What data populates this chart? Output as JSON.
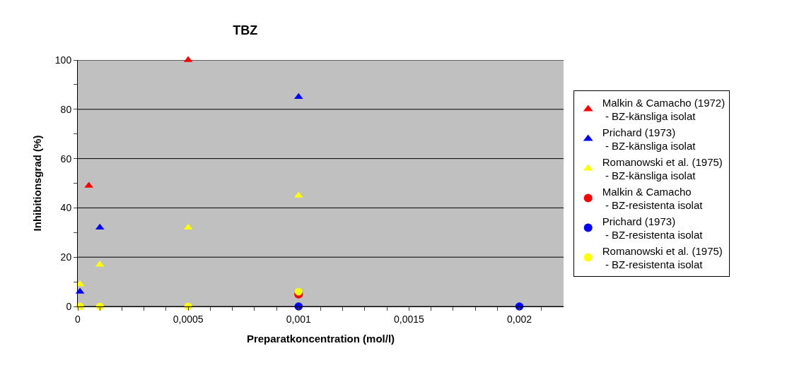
{
  "chart_data": {
    "type": "scatter",
    "title": "TBZ",
    "xlabel": "Preparatkoncentration (mol/l)",
    "ylabel": "Inhibitionsgrad (%)",
    "xlim": [
      0,
      0.0022
    ],
    "ylim": [
      0,
      100
    ],
    "xticks": [
      0,
      {
        "value": 0.0001,
        "label": null
      },
      {
        "value": 0.0002,
        "label": null
      },
      {
        "value": 0.0003,
        "label": null
      },
      {
        "value": 0.0004,
        "label": null
      },
      {
        "value": 0.0005,
        "label": "0,0005"
      },
      {
        "value": 0.0006,
        "label": null
      },
      {
        "value": 0.0007,
        "label": null
      },
      {
        "value": 0.0008,
        "label": null
      },
      {
        "value": 0.0009,
        "label": null
      },
      {
        "value": 0.001,
        "label": "0,001"
      },
      {
        "value": 0.0011,
        "label": null
      },
      {
        "value": 0.0012,
        "label": null
      },
      {
        "value": 0.0013,
        "label": null
      },
      {
        "value": 0.0014,
        "label": null
      },
      {
        "value": 0.0015,
        "label": "0,0015"
      },
      {
        "value": 0.0016,
        "label": null
      },
      {
        "value": 0.0017,
        "label": null
      },
      {
        "value": 0.0018,
        "label": null
      },
      {
        "value": 0.0019,
        "label": null
      },
      {
        "value": 0.002,
        "label": "0,002"
      },
      {
        "value": 0.0021,
        "label": null
      }
    ],
    "yticks": [
      0,
      {
        "value": 10,
        "label": null
      },
      20,
      {
        "value": 30,
        "label": null
      },
      40,
      {
        "value": 50,
        "label": null
      },
      60,
      {
        "value": 70,
        "label": null
      },
      80,
      {
        "value": 90,
        "label": null
      },
      100
    ],
    "grid": "y",
    "legend": "right",
    "series": [
      {
        "name": "Malkin & Camacho (1972)\n - BZ-känsliga isolat",
        "color": "#ff0000",
        "marker": "triangle",
        "x": [
          5e-05,
          0.0005
        ],
        "values": [
          49,
          100
        ]
      },
      {
        "name": "Prichard (1973)\n - BZ-känsliga isolat",
        "color": "#0000ff",
        "marker": "triangle",
        "x": [
          1e-05,
          0.0001,
          0.001
        ],
        "values": [
          6,
          32,
          85
        ]
      },
      {
        "name": "Romanowski et al. (1975)\n - BZ-känsliga isolat",
        "color": "#ffff00",
        "marker": "triangle",
        "x": [
          1e-05,
          0.0001,
          0.0005,
          0.001
        ],
        "values": [
          9,
          17,
          32,
          45
        ]
      },
      {
        "name": "Malkin & Camacho\n - BZ-resistenta isolat",
        "color": "#ff0000",
        "marker": "circle",
        "x": [
          0.001
        ],
        "values": [
          5
        ]
      },
      {
        "name": "Prichard (1973)\n - BZ-resistenta isolat",
        "color": "#0000ff",
        "marker": "circle",
        "x": [
          0.001,
          0.002
        ],
        "values": [
          0,
          0
        ]
      },
      {
        "name": "Romanowski et al. (1975)\n - BZ-resistenta isolat",
        "color": "#ffff00",
        "marker": "circle",
        "x": [
          1e-05,
          0.0001,
          0.0005,
          0.001
        ],
        "values": [
          0,
          0,
          0,
          6
        ]
      }
    ]
  }
}
